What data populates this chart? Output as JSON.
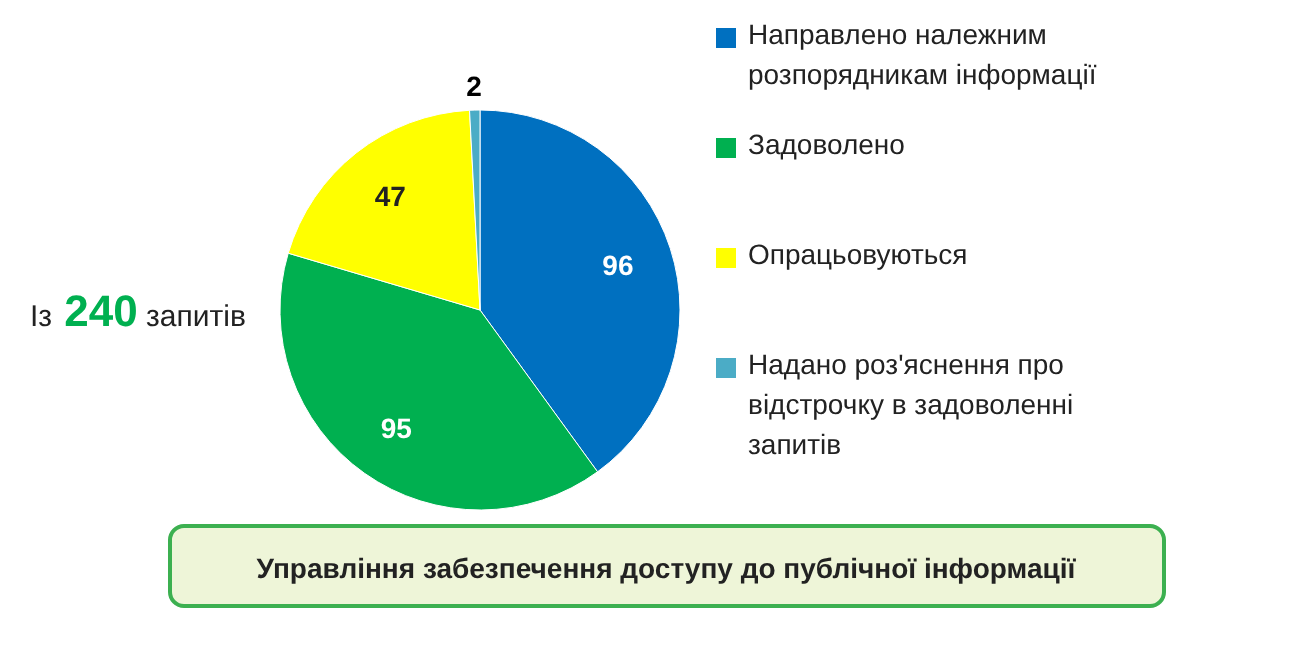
{
  "chart_data": {
    "type": "pie",
    "title": "Управління забезпечення доступу до публічної інформації",
    "categories": [
      "Направлено належним розпорядникам інформації",
      "Задоволено",
      "Опрацьовуються",
      "Надано роз'яснення про відстрочку в задоволенні запитів"
    ],
    "values": [
      96,
      95,
      47,
      2
    ],
    "colors": [
      "#0070c0",
      "#00b050",
      "#ffff00",
      "#4bacc6"
    ],
    "data_labels": true,
    "legend": "right",
    "annotations": [
      "Із 240 запитів"
    ]
  }
}
